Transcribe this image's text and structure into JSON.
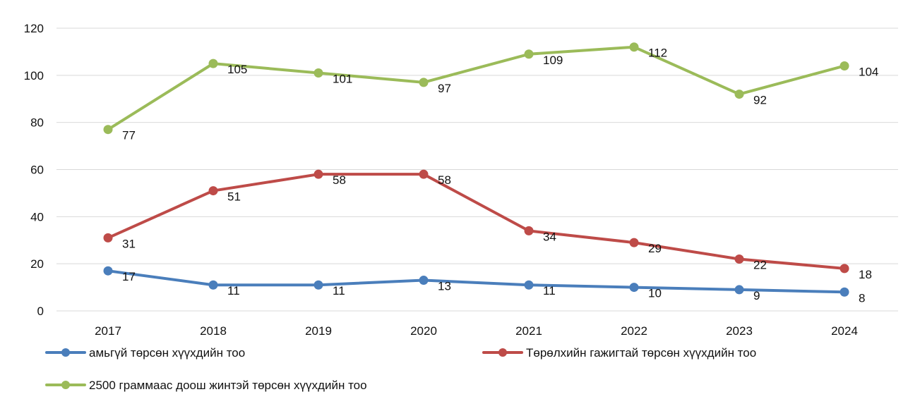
{
  "colors": {
    "grid": "#d9d9d9",
    "text": "#111111"
  },
  "chart_data": {
    "type": "line",
    "title": "",
    "xlabel": "",
    "ylabel": "",
    "ylim": [
      0,
      120
    ],
    "yticks": [
      "0",
      "20",
      "40",
      "60",
      "80",
      "100",
      "120"
    ],
    "grid": true,
    "legend_position": "bottom",
    "categories": [
      "2017",
      "2018",
      "2019",
      "2020",
      "2021",
      "2022",
      "2023",
      "2024"
    ],
    "series": [
      {
        "name": "амьгүй төрсөн хүүхдийн тоо",
        "color": "#4a7ebb",
        "values": [
          17,
          11,
          11,
          13,
          11,
          10,
          9,
          8
        ],
        "labels": [
          "17",
          "11",
          "11",
          "13",
          "11",
          "10",
          "9",
          "8"
        ]
      },
      {
        "name": "Төрөлхийн гажигтай төрсөн хүүхдийн тоо",
        "color": "#be4b48",
        "values": [
          31,
          51,
          58,
          58,
          34,
          29,
          22,
          18
        ],
        "labels": [
          "31",
          "51",
          "58",
          "58",
          "34",
          "29",
          "22",
          "18"
        ]
      },
      {
        "name": "2500 граммаас доош жинтэй төрсөн хүүхдийн тоо",
        "color": "#9bbb59",
        "values": [
          77,
          105,
          101,
          97,
          109,
          112,
          92,
          104
        ],
        "labels": [
          "77",
          "105",
          "101",
          "97",
          "109",
          "112",
          "92",
          "104"
        ]
      }
    ]
  }
}
